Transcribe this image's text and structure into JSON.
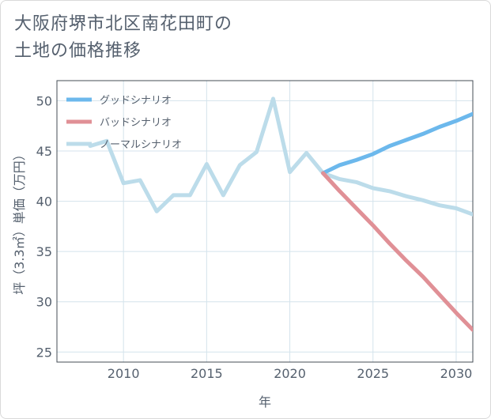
{
  "title_lines": [
    "大阪府堺市北区南花田町の",
    "土地の価格推移"
  ],
  "chart_data": {
    "type": "line",
    "xlabel": "年",
    "ylabel": "坪（3.3㎡）単価（万円）",
    "xlim": [
      2006,
      2031
    ],
    "ylim": [
      24,
      52
    ],
    "xticks": [
      2010,
      2015,
      2020,
      2025,
      2030
    ],
    "yticks": [
      25,
      30,
      35,
      40,
      45,
      50
    ],
    "grid": true,
    "legend_position": "top-left",
    "series": [
      {
        "name": "グッドシナリオ",
        "color": "#6cb8ec",
        "x": [
          2022,
          2023,
          2024,
          2025,
          2026,
          2027,
          2028,
          2029,
          2030,
          2031
        ],
        "y": [
          42.8,
          43.6,
          44.1,
          44.7,
          45.5,
          46.1,
          46.7,
          47.4,
          48.0,
          48.7
        ]
      },
      {
        "name": "バッドシナリオ",
        "color": "#e09096",
        "x": [
          2022,
          2023,
          2024,
          2025,
          2026,
          2027,
          2028,
          2029,
          2030,
          2031
        ],
        "y": [
          42.8,
          41.0,
          39.3,
          37.6,
          35.8,
          34.1,
          32.5,
          30.7,
          28.9,
          27.2
        ]
      },
      {
        "name": "ノーマルシナリオ",
        "color": "#bcdcea",
        "x": [
          2008,
          2009,
          2010,
          2011,
          2012,
          2013,
          2014,
          2015,
          2016,
          2017,
          2018,
          2019,
          2020,
          2021,
          2022,
          2023,
          2024,
          2025,
          2026,
          2027,
          2028,
          2029,
          2030,
          2031
        ],
        "y": [
          45.5,
          46.0,
          41.8,
          42.1,
          39.0,
          40.6,
          40.6,
          43.7,
          40.6,
          43.6,
          44.9,
          50.2,
          42.9,
          44.8,
          42.8,
          42.2,
          41.9,
          41.3,
          41.0,
          40.5,
          40.1,
          39.6,
          39.3,
          38.7
        ]
      }
    ]
  }
}
